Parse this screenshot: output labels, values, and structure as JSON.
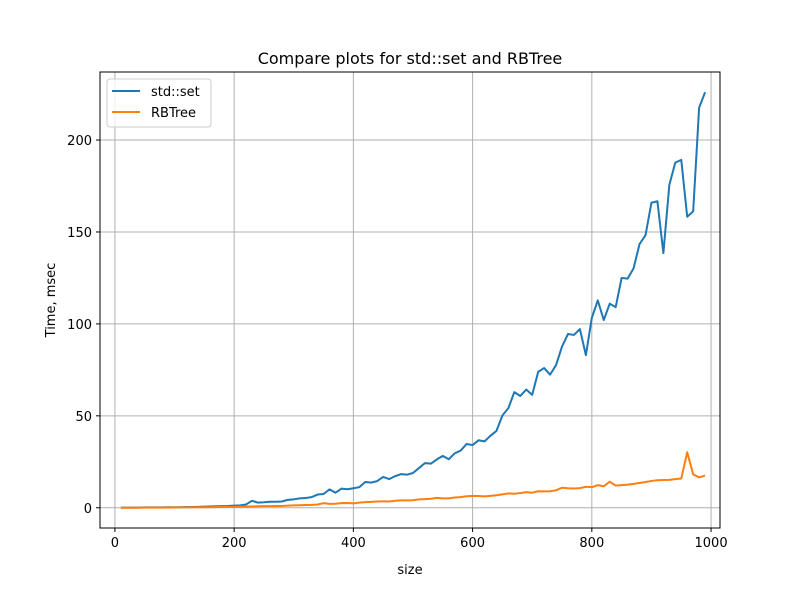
{
  "chart_data": {
    "type": "line",
    "title": "Compare plots for std::set and RBTree",
    "xlabel": "size",
    "ylabel": "Time, msec",
    "xlim": [
      -25,
      1015
    ],
    "ylim": [
      -11,
      237
    ],
    "xticks": [
      0,
      200,
      400,
      600,
      800,
      1000
    ],
    "yticks": [
      0,
      50,
      100,
      150,
      200
    ],
    "grid": true,
    "legend_position": "top-left",
    "x": [
      10,
      20,
      30,
      40,
      50,
      60,
      70,
      80,
      90,
      100,
      110,
      120,
      130,
      140,
      150,
      160,
      170,
      180,
      190,
      200,
      210,
      220,
      230,
      240,
      250,
      260,
      270,
      280,
      290,
      300,
      310,
      320,
      330,
      340,
      350,
      360,
      370,
      380,
      390,
      400,
      410,
      420,
      430,
      440,
      450,
      460,
      470,
      480,
      490,
      500,
      510,
      520,
      530,
      540,
      550,
      560,
      570,
      580,
      590,
      600,
      610,
      620,
      630,
      640,
      650,
      660,
      670,
      680,
      690,
      700,
      710,
      720,
      730,
      740,
      750,
      760,
      770,
      780,
      790,
      800,
      810,
      820,
      830,
      840,
      850,
      860,
      870,
      880,
      890,
      900,
      910,
      920,
      930,
      940,
      950,
      960,
      970,
      980,
      990
    ],
    "series": [
      {
        "name": "std::set",
        "color": "#1f77b4",
        "values": [
          0.1,
          0.1,
          0.1,
          0.1,
          0.2,
          0.2,
          0.2,
          0.2,
          0.3,
          0.3,
          0.3,
          0.4,
          0.4,
          0.5,
          0.6,
          0.7,
          0.8,
          0.9,
          1.0,
          1.2,
          1.3,
          1.8,
          3.8,
          2.8,
          3.0,
          3.3,
          3.3,
          3.4,
          4.3,
          4.6,
          5.1,
          5.3,
          5.8,
          7.2,
          7.5,
          10.0,
          8.2,
          10.4,
          10.1,
          10.6,
          11.2,
          14.0,
          13.7,
          14.5,
          16.8,
          15.6,
          17.2,
          18.3,
          18.0,
          18.9,
          21.6,
          24.3,
          24.0,
          26.3,
          28.2,
          26.4,
          29.6,
          31.1,
          34.7,
          34.1,
          36.7,
          36.1,
          39.2,
          41.8,
          50.2,
          54.2,
          62.9,
          60.8,
          64.3,
          61.4,
          73.9,
          76.0,
          72.4,
          77.6,
          87.7,
          94.5,
          94.0,
          97.2,
          83.0,
          103.3,
          112.8,
          102.1,
          111.0,
          109.1,
          125.0,
          124.6,
          130.2,
          143.4,
          148.2,
          165.9,
          166.7,
          138.5,
          175.6,
          187.7,
          189.2,
          158.3,
          161.2,
          217.6,
          226.0
        ]
      },
      {
        "name": "RBTree",
        "color": "#ff7f0e",
        "values": [
          0.0,
          0.0,
          0.0,
          0.0,
          0.1,
          0.1,
          0.1,
          0.1,
          0.1,
          0.2,
          0.2,
          0.2,
          0.2,
          0.3,
          0.3,
          0.3,
          0.4,
          0.4,
          0.5,
          0.5,
          0.6,
          0.7,
          0.7,
          0.8,
          0.9,
          0.9,
          1.0,
          1.0,
          1.2,
          1.3,
          1.4,
          1.5,
          1.6,
          1.8,
          2.5,
          2.1,
          2.2,
          2.5,
          2.6,
          2.4,
          2.8,
          3.1,
          3.2,
          3.4,
          3.5,
          3.4,
          3.8,
          4.0,
          4.0,
          4.1,
          4.6,
          4.7,
          4.9,
          5.4,
          5.1,
          5.1,
          5.6,
          5.8,
          6.3,
          6.5,
          6.4,
          6.2,
          6.5,
          6.8,
          7.3,
          7.8,
          7.6,
          8.0,
          8.5,
          8.2,
          9.0,
          8.9,
          9.0,
          9.5,
          10.9,
          10.6,
          10.5,
          10.7,
          11.4,
          11.2,
          12.3,
          11.7,
          14.2,
          12.1,
          12.3,
          12.6,
          13.0,
          13.5,
          14.0,
          14.6,
          15.0,
          15.1,
          15.2,
          15.6,
          15.9,
          30.2,
          18.2,
          16.5,
          17.5
        ]
      }
    ]
  }
}
